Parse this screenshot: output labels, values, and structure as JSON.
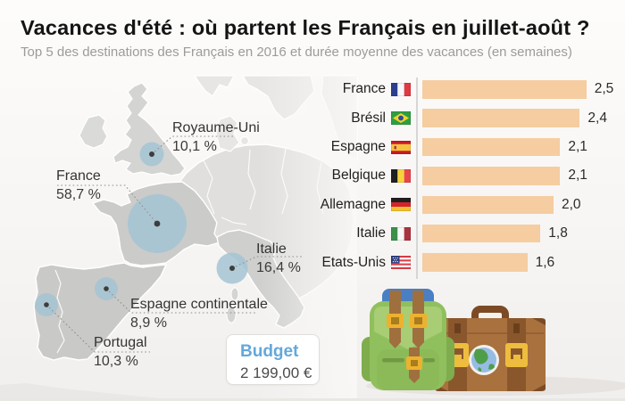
{
  "header": {
    "title": "Vacances d'été : où partent les Français en juillet-août ?",
    "subtitle": "Top 5 des destinations des Français en 2016 et durée moyenne des vacances (en semaines)"
  },
  "map": {
    "bubble_color": "#a4c4d4",
    "destinations": [
      {
        "name": "Royaume-Uni",
        "share_label": "10,1 %",
        "share_pct": 10.1
      },
      {
        "name": "France",
        "share_label": "58,7 %",
        "share_pct": 58.7
      },
      {
        "name": "Italie",
        "share_label": "16,4 %",
        "share_pct": 16.4
      },
      {
        "name": "Espagne continentale",
        "share_label": "8,9 %",
        "share_pct": 8.9
      },
      {
        "name": "Portugal",
        "share_label": "10,3 %",
        "share_pct": 10.3
      }
    ]
  },
  "budget": {
    "label": "Budget",
    "amount": "2 199,00 €"
  },
  "chart_data": {
    "type": "bar",
    "orientation": "horizontal",
    "title": "Durée moyenne des vacances",
    "unit": "semaines",
    "categories": [
      "France",
      "Brésil",
      "Espagne",
      "Belgique",
      "Allemagne",
      "Italie",
      "Etats-Unis"
    ],
    "values": [
      2.5,
      2.4,
      2.1,
      2.1,
      2.0,
      1.8,
      1.6
    ],
    "value_labels": [
      "2,5",
      "2,4",
      "2,1",
      "2,1",
      "2,0",
      "1,8",
      "1,6"
    ],
    "xlim": [
      0,
      2.5
    ],
    "bar_color": "#f5cda1",
    "flags": [
      "france",
      "bresil",
      "espagne",
      "belgique",
      "allemagne",
      "italie",
      "etats-unis"
    ]
  }
}
